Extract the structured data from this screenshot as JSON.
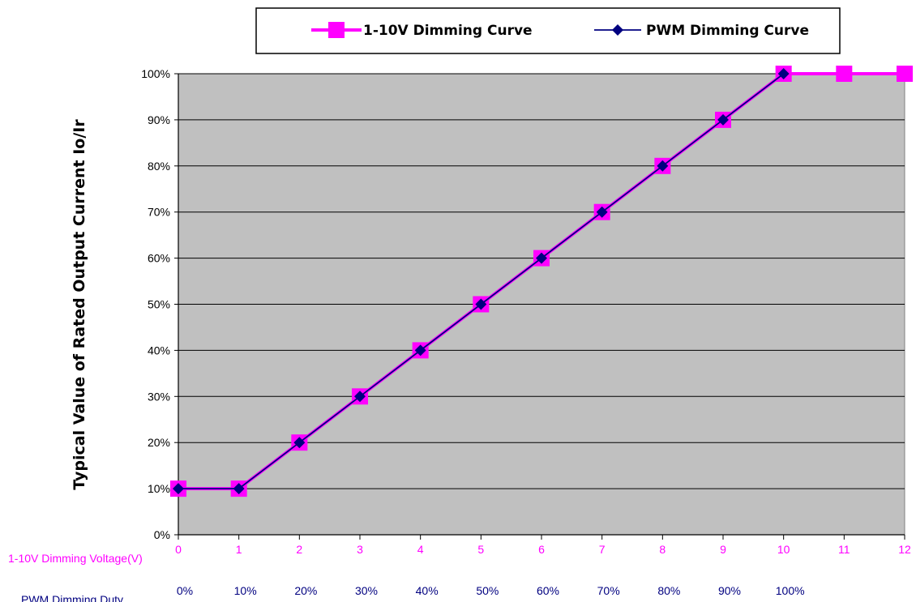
{
  "chart_data": {
    "type": "line",
    "ylabel": "Typical Value of Rated Output Current Io/Ir",
    "y_ticks": [
      "0%",
      "10%",
      "20%",
      "30%",
      "40%",
      "50%",
      "60%",
      "70%",
      "80%",
      "90%",
      "100%"
    ],
    "ylim": [
      0,
      100
    ],
    "grid": true,
    "legend_position": "top",
    "x_axis_rows": [
      {
        "label": "1-10V Dimming Voltage(V)",
        "color": "#ff00ff",
        "ticks": [
          "0",
          "1",
          "2",
          "3",
          "4",
          "5",
          "6",
          "7",
          "8",
          "9",
          "10",
          "11",
          "12"
        ]
      },
      {
        "label": "PWM Dimming Duty",
        "color": "#000080",
        "ticks": [
          "0%",
          "10%",
          "20%",
          "30%",
          "40%",
          "50%",
          "60%",
          "70%",
          "80%",
          "90%",
          "100%"
        ]
      }
    ],
    "x": [
      0,
      1,
      2,
      3,
      4,
      5,
      6,
      7,
      8,
      9,
      10,
      11,
      12
    ],
    "series": [
      {
        "name": "1-10V Dimming Curve",
        "color": "#ff00ff",
        "marker": "square",
        "x": [
          0,
          1,
          2,
          3,
          4,
          5,
          6,
          7,
          8,
          9,
          10,
          11,
          12
        ],
        "values": [
          10,
          10,
          20,
          30,
          40,
          50,
          60,
          70,
          80,
          90,
          100,
          100,
          100
        ]
      },
      {
        "name": "PWM Dimming Curve",
        "color": "#000080",
        "marker": "diamond",
        "x": [
          0,
          1,
          2,
          3,
          4,
          5,
          6,
          7,
          8,
          9,
          10
        ],
        "values": [
          10,
          10,
          20,
          30,
          40,
          50,
          60,
          70,
          80,
          90,
          100
        ]
      }
    ],
    "plot_background": "#c0c0c0"
  }
}
